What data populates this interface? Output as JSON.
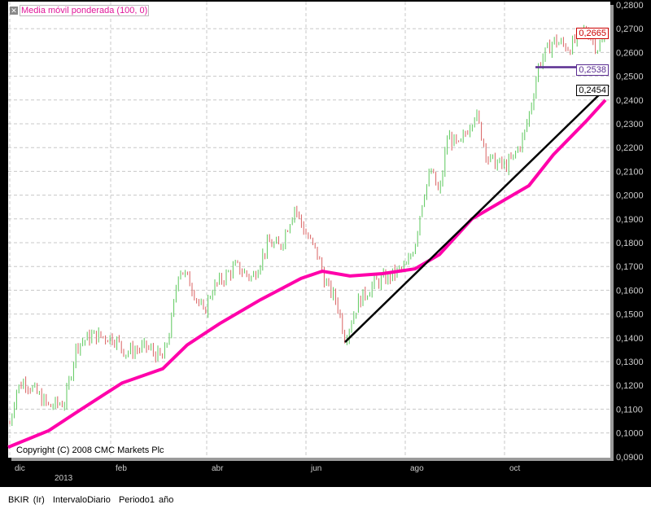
{
  "legend": {
    "close_icon": "close-icon",
    "label": "Media móvil ponderada (100, 0)"
  },
  "copyright": "Copyright (C) 2008 CMC Markets Plc",
  "footer": {
    "symbol": "BKIR (Ir)",
    "interval": "IntervaloDiario",
    "period": "Periodo1 año"
  },
  "price_tags": {
    "last": "0,2665",
    "support": "0,2538",
    "trend": "0,2454"
  },
  "colors": {
    "up": "#5cc85c",
    "down": "#d96060",
    "ma": "#ff00aa",
    "trend": "#000000",
    "support": "#5a2d91",
    "last_tag": "#cc0000"
  },
  "chart_data": {
    "type": "ohlc",
    "ylim": [
      0.09,
      0.28
    ],
    "yticks": [
      "0,2800",
      "0,2700",
      "0,2600",
      "0,2500",
      "0,2400",
      "0,2300",
      "0,2200",
      "0,2100",
      "0,2000",
      "0,1900",
      "0,1800",
      "0,1700",
      "0,1600",
      "0,1500",
      "0,1400",
      "0,1300",
      "0,1200",
      "0,1100",
      "0,1000",
      "0,0900"
    ],
    "xticks": [
      {
        "date": "2012-12-01",
        "label": "dic"
      },
      {
        "date": "2013-02-01",
        "label": "feb"
      },
      {
        "date": "2013-04-01",
        "label": "abr"
      },
      {
        "date": "2013-06-01",
        "label": "jun"
      },
      {
        "date": "2013-08-01",
        "label": "ago"
      },
      {
        "date": "2013-10-01",
        "label": "oct"
      }
    ],
    "year_label": "2013",
    "grid": true,
    "price": [
      [
        "2012-12-01",
        0.104
      ],
      [
        "2012-12-05",
        0.118
      ],
      [
        "2012-12-10",
        0.122
      ],
      [
        "2012-12-17",
        0.117
      ],
      [
        "2012-12-25",
        0.111
      ],
      [
        "2013-01-04",
        0.113
      ],
      [
        "2013-01-11",
        0.137
      ],
      [
        "2013-01-21",
        0.141
      ],
      [
        "2013-02-03",
        0.14
      ],
      [
        "2013-02-10",
        0.134
      ],
      [
        "2013-02-23",
        0.136
      ],
      [
        "2013-03-05",
        0.131
      ],
      [
        "2013-03-10",
        0.145
      ],
      [
        "2013-03-15",
        0.17
      ],
      [
        "2013-03-22",
        0.163
      ],
      [
        "2013-03-30",
        0.15
      ],
      [
        "2013-04-04",
        0.16
      ],
      [
        "2013-04-11",
        0.165
      ],
      [
        "2013-04-19",
        0.17
      ],
      [
        "2013-04-29",
        0.165
      ],
      [
        "2013-05-09",
        0.18
      ],
      [
        "2013-05-16",
        0.178
      ],
      [
        "2013-05-25",
        0.195
      ],
      [
        "2013-05-31",
        0.185
      ],
      [
        "2013-06-08",
        0.175
      ],
      [
        "2013-06-13",
        0.163
      ],
      [
        "2013-06-20",
        0.155
      ],
      [
        "2013-06-25",
        0.14
      ],
      [
        "2013-07-03",
        0.155
      ],
      [
        "2013-07-13",
        0.163
      ],
      [
        "2013-07-23",
        0.166
      ],
      [
        "2013-08-02",
        0.17
      ],
      [
        "2013-08-07",
        0.18
      ],
      [
        "2013-08-12",
        0.2
      ],
      [
        "2013-08-17",
        0.21
      ],
      [
        "2013-08-22",
        0.2
      ],
      [
        "2013-08-27",
        0.225
      ],
      [
        "2013-09-03",
        0.22
      ],
      [
        "2013-09-13",
        0.235
      ],
      [
        "2013-09-21",
        0.215
      ],
      [
        "2013-10-01",
        0.212
      ],
      [
        "2013-10-06",
        0.215
      ],
      [
        "2013-10-13",
        0.225
      ],
      [
        "2013-10-18",
        0.24
      ],
      [
        "2013-10-22",
        0.255
      ],
      [
        "2013-10-31",
        0.265
      ],
      [
        "2013-11-10",
        0.262
      ],
      [
        "2013-11-20",
        0.27
      ],
      [
        "2013-11-27",
        0.262
      ],
      [
        "2013-12-02",
        0.2665
      ]
    ],
    "moving_average": [
      [
        "2012-11-30",
        0.094
      ],
      [
        "2012-12-25",
        0.101
      ],
      [
        "2013-01-14",
        0.11
      ],
      [
        "2013-02-08",
        0.121
      ],
      [
        "2013-03-05",
        0.127
      ],
      [
        "2013-03-20",
        0.137
      ],
      [
        "2013-04-09",
        0.146
      ],
      [
        "2013-05-04",
        0.156
      ],
      [
        "2013-05-29",
        0.165
      ],
      [
        "2013-06-11",
        0.168
      ],
      [
        "2013-06-28",
        0.166
      ],
      [
        "2013-07-18",
        0.167
      ],
      [
        "2013-08-07",
        0.169
      ],
      [
        "2013-08-22",
        0.175
      ],
      [
        "2013-09-11",
        0.19
      ],
      [
        "2013-10-01",
        0.198
      ],
      [
        "2013-10-16",
        0.204
      ],
      [
        "2013-10-31",
        0.217
      ],
      [
        "2013-11-20",
        0.231
      ],
      [
        "2013-12-02",
        0.24
      ]
    ],
    "trend_line": [
      [
        "2013-06-25",
        0.1382
      ],
      [
        "2013-12-04",
        0.2461
      ]
    ],
    "support_line": [
      [
        "2013-10-20",
        0.2538
      ],
      [
        "2013-12-04",
        0.2538
      ]
    ]
  }
}
